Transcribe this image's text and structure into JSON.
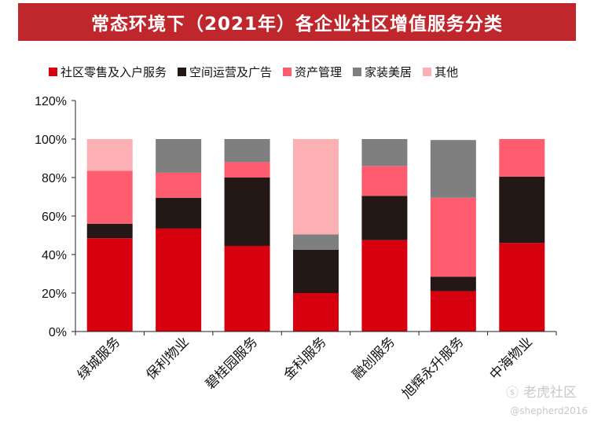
{
  "chart_data": {
    "type": "bar",
    "stacked": true,
    "title": "常态环境下（2021年）各企业社区增值服务分类",
    "categories": [
      "绿城服务",
      "保利物业",
      "碧桂园服务",
      "金科服务",
      "融创服务",
      "旭辉永升服务",
      "中海物业"
    ],
    "series": [
      {
        "name": "社区零售及入户服务",
        "color": "#d7000f",
        "values": [
          48.5,
          53.5,
          44.5,
          20,
          47.5,
          21,
          46
        ]
      },
      {
        "name": "空间运营及广告",
        "color": "#231815",
        "values": [
          7.5,
          16,
          35.5,
          22.5,
          23,
          7.5,
          34.5
        ]
      },
      {
        "name": "资产管理",
        "color": "#ff5c6f",
        "values": [
          27.5,
          13,
          8,
          0,
          15.5,
          41,
          19.5
        ]
      },
      {
        "name": "家装美居",
        "color": "#7f7f7f",
        "values": [
          0,
          17.5,
          12,
          8,
          14,
          30,
          0
        ]
      },
      {
        "name": "其他",
        "color": "#fdb0b4",
        "values": [
          16.5,
          0,
          0,
          49.5,
          0,
          0,
          0
        ]
      }
    ],
    "ylim": [
      0,
      120
    ],
    "yticks": [
      0,
      20,
      40,
      60,
      80,
      100,
      120
    ],
    "ytick_labels": [
      "0%",
      "20%",
      "40%",
      "60%",
      "80%",
      "100%",
      "120%"
    ],
    "xlabel": "",
    "ylabel": "",
    "legend_position": "top"
  },
  "watermark": {
    "logo": "ⓢ",
    "text": "老虎社区",
    "credit": "@shepherd2016"
  }
}
